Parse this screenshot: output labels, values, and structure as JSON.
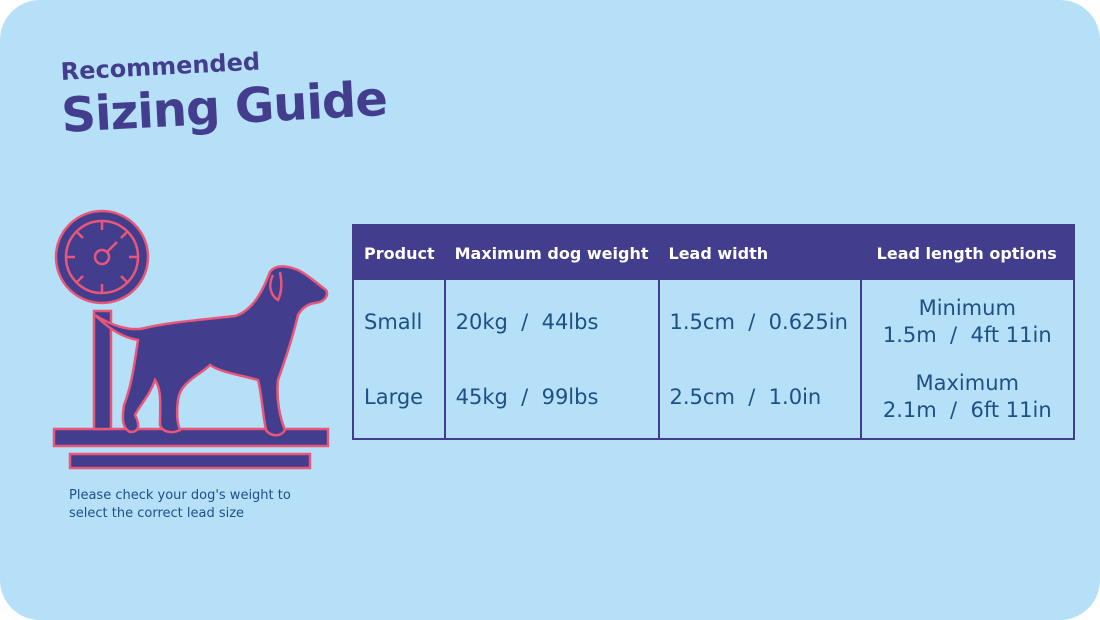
{
  "title": {
    "line1": "Recommended",
    "line2": "Sizing Guide"
  },
  "illustration": {
    "icon": "dog-on-scale",
    "colors": {
      "fill": "#433d8e",
      "outline": "#e8577a"
    }
  },
  "note": "Please check your dog's weight to select the correct lead size",
  "table": {
    "headers": [
      "Product",
      "Maximum dog weight",
      "Lead width",
      "Lead length options"
    ],
    "products": [
      "Small",
      "Large"
    ],
    "weights": [
      "20kg  /  44lbs",
      "45kg  /  99lbs"
    ],
    "widths": [
      "1.5cm  /  0.625in",
      "2.5cm  /  1.0in"
    ],
    "lengths": [
      {
        "label": "Minimum",
        "value": "1.5m  /  4ft 11in"
      },
      {
        "label": "Maximum",
        "value": "2.1m  /  6ft 11in"
      }
    ]
  },
  "colors": {
    "background": "#b5e0f8",
    "accent": "#433d8e",
    "outline": "#e8577a",
    "text": "#1e4f86"
  }
}
